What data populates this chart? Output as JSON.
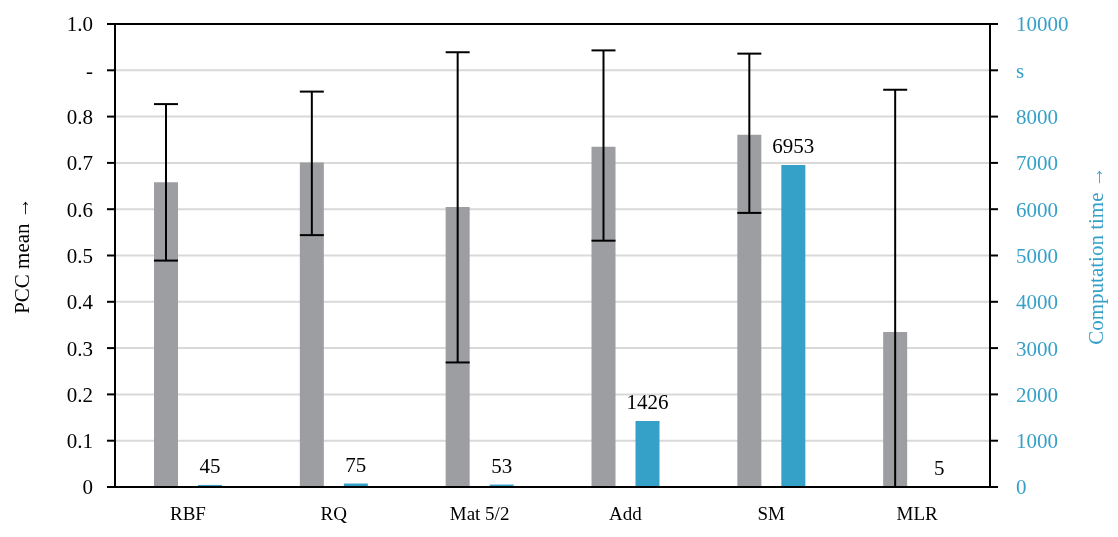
{
  "chart_data": {
    "type": "bar",
    "ylabel": "PCC mean →",
    "y2label": "Computation time →",
    "categories": [
      "RBF",
      "RQ",
      "Mat 5/2",
      "Add",
      "SM",
      "MLR"
    ],
    "series": [
      {
        "color": "#9d9ea2",
        "values": [
          0.658,
          0.701,
          0.605,
          0.735,
          0.761,
          0.335
        ],
        "errors": [
          [
            0.489,
            0.827
          ],
          [
            0.544,
            0.854
          ],
          [
            0.269,
            0.939
          ],
          [
            0.532,
            0.943
          ],
          [
            0.592,
            0.936
          ],
          [
            0,
            0.858
          ]
        ]
      },
      {
        "color": "#35a0c8",
        "axis": "y2",
        "values": [
          45,
          75,
          53,
          1426,
          6953,
          5
        ],
        "value_labels": [
          "45",
          "75",
          "53",
          "1426",
          "6953",
          "5"
        ]
      }
    ],
    "ylim": [
      0,
      1
    ],
    "yticks": [
      0,
      0.1,
      0.2,
      0.3,
      0.4,
      0.5,
      0.6,
      0.7,
      0.8,
      {
        "value": 0.9,
        "label": "-"
      },
      {
        "value": 1,
        "label": "1.0"
      }
    ],
    "y2lim": [
      0,
      10000
    ],
    "y2ticks": [
      0,
      1000,
      2000,
      3000,
      4000,
      5000,
      6000,
      7000,
      8000,
      {
        "value": 9000,
        "label": "s"
      },
      10000
    ],
    "grid": "y"
  }
}
